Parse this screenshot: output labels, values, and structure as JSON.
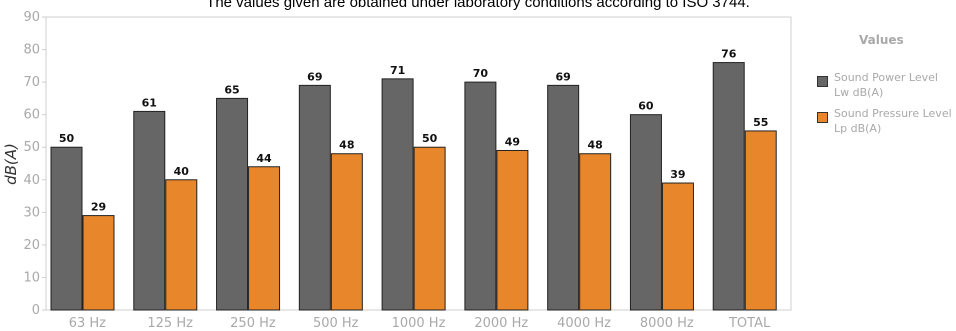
{
  "chart_data": {
    "type": "bar",
    "title": "The values given are obtained under laboratory conditions according to ISO 3744.",
    "xlabel": "",
    "ylabel": "dB(A)",
    "ylim": [
      0,
      90
    ],
    "yticks": [
      "0",
      "10",
      "20",
      "30",
      "40",
      "50",
      "60",
      "70",
      "80",
      "90"
    ],
    "grid": false,
    "legend_title": "Values",
    "legend_position": "right",
    "categories": [
      "63 Hz",
      "125 Hz",
      "250 Hz",
      "500 Hz",
      "1000 Hz",
      "2000 Hz",
      "4000 Hz",
      "8000 Hz",
      "TOTAL"
    ],
    "series": [
      {
        "name_line1": "Sound Power Level",
        "name_line2": "Lw dB(A)",
        "color": "#666666",
        "values": [
          50,
          61,
          65,
          69,
          71,
          70,
          69,
          60,
          76
        ]
      },
      {
        "name_line1": "Sound Pressure Level",
        "name_line2": "Lp dB(A)",
        "color": "#e7862a",
        "values": [
          29,
          40,
          44,
          48,
          50,
          49,
          48,
          39,
          55
        ]
      }
    ]
  }
}
